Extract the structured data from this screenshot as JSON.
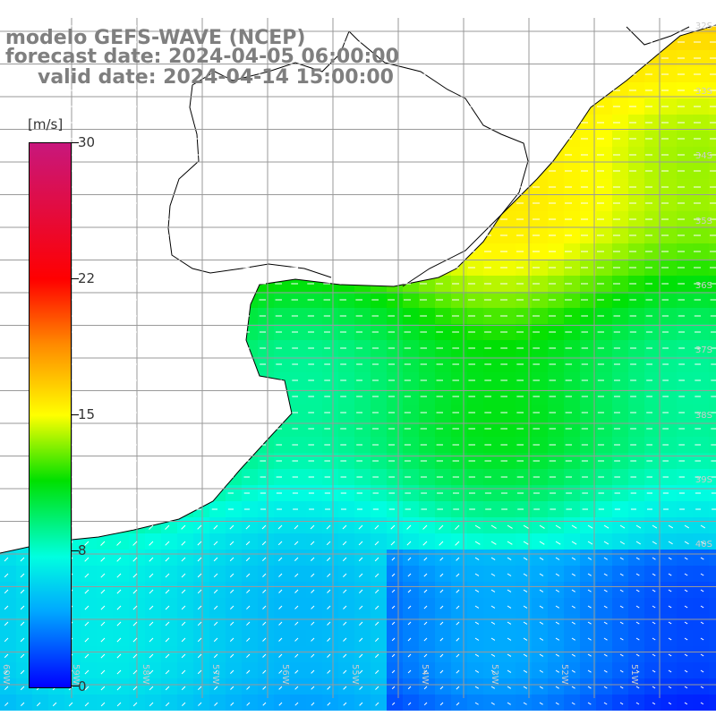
{
  "title": {
    "line1": "modelo GEFS-WAVE (NCEP)",
    "line2": "forecast date: 2024-04-05 06:00:00",
    "line3": "valid date: 2024-04-14 15:00:00"
  },
  "colorbar": {
    "unit": "[m/s]",
    "ticks": [
      "30",
      "22",
      "15",
      "8",
      "0"
    ],
    "colors": [
      "#c8177c",
      "#ff0000",
      "#ff8a00",
      "#ffff00",
      "#00e000",
      "#00ffe0",
      "#00a8ff",
      "#0000ff"
    ]
  },
  "lat_labels": [
    "32S",
    "33S",
    "34S",
    "35S",
    "36S",
    "37S",
    "38S",
    "39S",
    "40S"
  ],
  "lon_labels": [
    "60W",
    "59W",
    "58W",
    "57W",
    "56W",
    "55W",
    "54W",
    "53W",
    "52W",
    "51W"
  ],
  "map_colors": {
    "land": "#ffffff",
    "coast": "#000000",
    "grid": "#9a9a9a",
    "arrow": "#ffffff"
  }
}
